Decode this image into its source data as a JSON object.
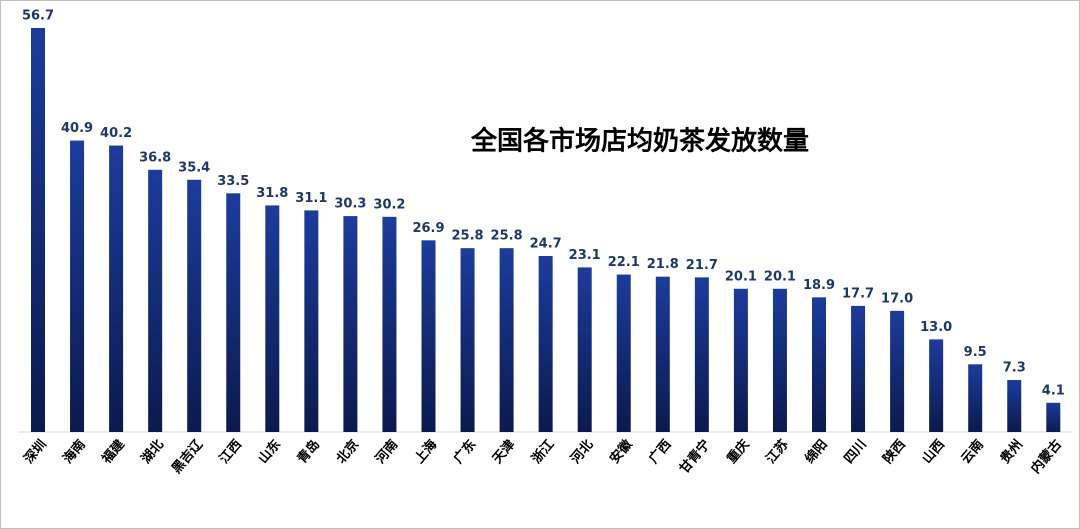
{
  "chart_data": {
    "type": "bar",
    "title": "全国各市场店均奶茶发放数量",
    "categories": [
      "深圳",
      "海南",
      "福建",
      "湖北",
      "黑吉辽",
      "江西",
      "山东",
      "青岛",
      "北京",
      "河南",
      "上海",
      "广东",
      "天津",
      "浙江",
      "河北",
      "安徽",
      "广西",
      "甘青宁",
      "重庆",
      "江苏",
      "绵阳",
      "四川",
      "陕西",
      "山西",
      "云南",
      "贵州",
      "内蒙古"
    ],
    "values": [
      56.7,
      40.9,
      40.2,
      36.8,
      35.4,
      33.5,
      31.8,
      31.1,
      30.3,
      30.2,
      26.9,
      25.8,
      25.8,
      24.7,
      23.1,
      22.1,
      21.8,
      21.7,
      20.1,
      20.1,
      18.9,
      17.7,
      17.0,
      13.0,
      9.5,
      7.3,
      4.1
    ],
    "value_labels": [
      "56.7",
      "40.9",
      "40.2",
      "36.8",
      "35.4",
      "33.5",
      "31.8",
      "31.1",
      "30.3",
      "30.2",
      "26.9",
      "25.8",
      "25.8",
      "24.7",
      "23.1",
      "22.1",
      "21.8",
      "21.7",
      "20.1",
      "20.1",
      "18.9",
      "17.7",
      "17.0",
      "13.0",
      "9.5",
      "7.3",
      "4.1"
    ],
    "color": "#1a3a8f"
  }
}
